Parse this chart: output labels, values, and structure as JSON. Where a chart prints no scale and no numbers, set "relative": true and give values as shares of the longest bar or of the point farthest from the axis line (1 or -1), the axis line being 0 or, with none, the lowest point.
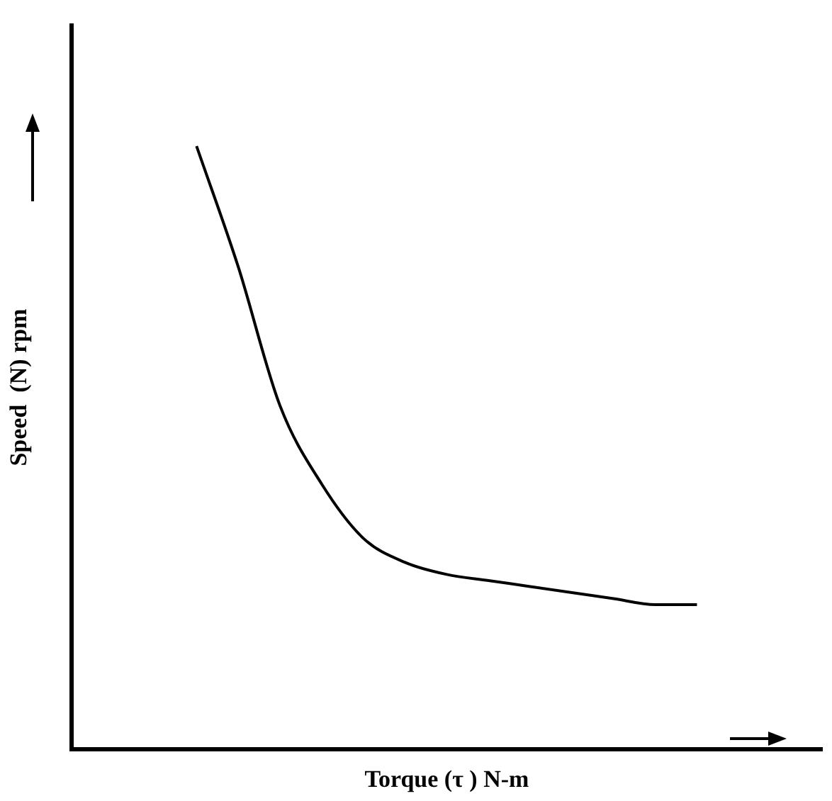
{
  "chart_data": {
    "type": "line",
    "relative": true,
    "xlabel": "Torque (τ ) N-m",
    "ylabel": "Speed  (N) rpm",
    "color": "#000000",
    "grid": false,
    "legend": false,
    "marker": "none",
    "line_style": "solid",
    "categories": [
      null,
      null,
      null,
      null,
      null,
      null,
      null,
      null,
      null,
      null,
      null,
      null,
      null,
      null,
      null,
      null,
      null,
      null,
      null
    ],
    "values": [
      null,
      null,
      null,
      1,
      0.8,
      0.57,
      0.44,
      0.35,
      0.31,
      0.29,
      0.28,
      0.27,
      0.26,
      0.25,
      0.24,
      0.24,
      null,
      null,
      null
    ]
  }
}
